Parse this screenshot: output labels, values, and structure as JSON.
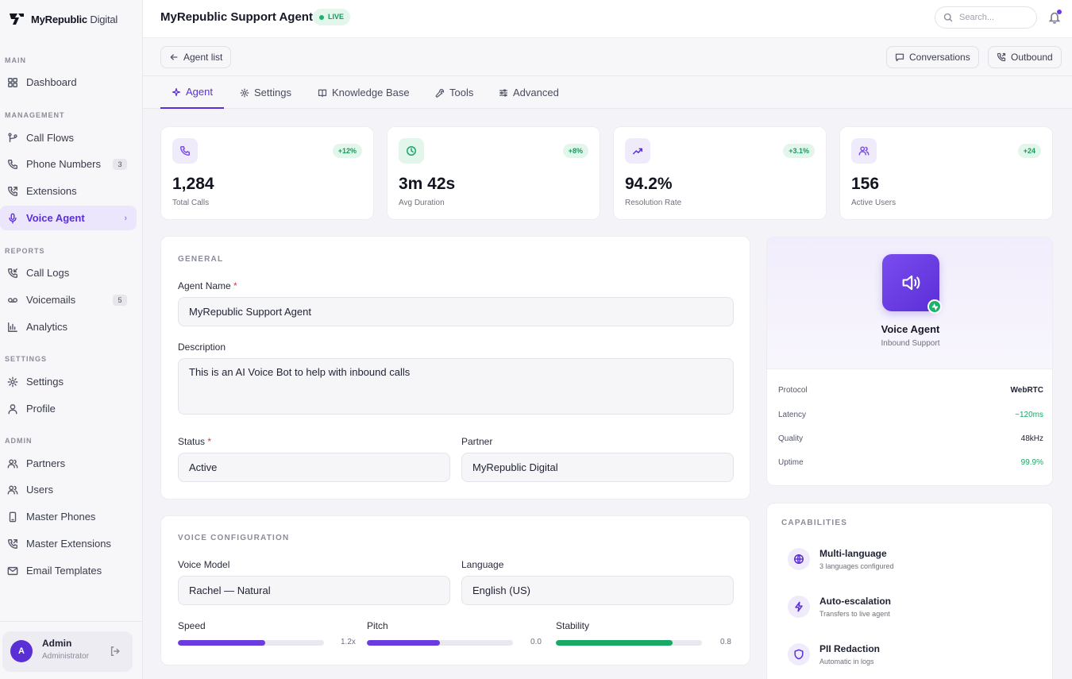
{
  "brand": {
    "name_bold": "MyRepublic",
    "name_light": "Digital"
  },
  "sidebar": {
    "sections": [
      {
        "label": "MAIN"
      },
      {
        "label": "MANAGEMENT"
      },
      {
        "label": "REPORTS"
      },
      {
        "label": "SETTINGS"
      },
      {
        "label": "ADMIN"
      }
    ],
    "items": [
      {
        "label": "Dashboard",
        "icon": "grid-icon"
      },
      {
        "label": "Call Flows",
        "icon": "flow-icon"
      },
      {
        "label": "Phone Numbers",
        "icon": "phone-icon",
        "badge": "3"
      },
      {
        "label": "Extensions",
        "icon": "phone-forward-icon"
      },
      {
        "label": "Voice Agent",
        "icon": "mic-icon",
        "active": true
      },
      {
        "label": "Call Logs",
        "icon": "phone-incoming-icon"
      },
      {
        "label": "Voicemails",
        "icon": "voicemail-icon",
        "badge": "5"
      },
      {
        "label": "Analytics",
        "icon": "bar-chart-icon"
      },
      {
        "label": "Settings",
        "icon": "gear-icon"
      },
      {
        "label": "Profile",
        "icon": "user-icon"
      },
      {
        "label": "Partners",
        "icon": "users-icon"
      },
      {
        "label": "Users",
        "icon": "users-icon"
      },
      {
        "label": "Master Phones",
        "icon": "smartphone-icon"
      },
      {
        "label": "Master Extensions",
        "icon": "phone-forward-icon"
      },
      {
        "label": "Email Templates",
        "icon": "mail-icon"
      }
    ]
  },
  "user": {
    "initial": "A",
    "name": "Admin",
    "role": "Administrator"
  },
  "header": {
    "title": "MyRepublic Support Agent",
    "status": "LIVE",
    "search_placeholder": "Search..."
  },
  "subbar": {
    "back_label": "Agent list",
    "conversations_label": "Conversations",
    "outbound_label": "Outbound"
  },
  "tabs": [
    {
      "label": "Agent",
      "active": true
    },
    {
      "label": "Settings"
    },
    {
      "label": "Knowledge Base"
    },
    {
      "label": "Tools"
    },
    {
      "label": "Advanced"
    }
  ],
  "stats": [
    {
      "value": "1,284",
      "label": "Total Calls",
      "delta": "+12%",
      "icon": "phone-icon",
      "color": "#7a4cf0",
      "bg": "#efebfb"
    },
    {
      "value": "3m 42s",
      "label": "Avg Duration",
      "delta": "+8%",
      "icon": "clock-icon",
      "color": "#19a865",
      "bg": "#e3f6ec"
    },
    {
      "value": "94.2%",
      "label": "Resolution Rate",
      "delta": "+3.1%",
      "icon": "trending-up-icon",
      "color": "#5b2fd6",
      "bg": "#efebfb"
    },
    {
      "value": "156",
      "label": "Active Users",
      "delta": "+24",
      "icon": "users-icon",
      "color": "#7a4cf0",
      "bg": "#efebfb"
    }
  ],
  "general": {
    "title": "GENERAL",
    "agent_name_label": "Agent Name",
    "agent_name": "MyRepublic Support Agent",
    "description_label": "Description",
    "description": "This is an AI Voice Bot to help with inbound calls",
    "status_label": "Status",
    "status": "Active",
    "partner_label": "Partner",
    "partner": "MyRepublic Digital",
    "required_mark": "*"
  },
  "voice": {
    "title": "VOICE CONFIGURATION",
    "model_label": "Voice Model",
    "model": "Rachel — Natural",
    "language_label": "Language",
    "language": "English (US)",
    "sliders": [
      {
        "label": "Speed",
        "value": "1.2x",
        "fraction": 0.6,
        "color": "#6a3ce0"
      },
      {
        "label": "Pitch",
        "value": "0.0",
        "fraction": 0.5,
        "color": "#6a3ce0"
      },
      {
        "label": "Stability",
        "value": "0.8",
        "fraction": 0.8,
        "color": "#19a865"
      }
    ]
  },
  "agent_card": {
    "title": "Voice Agent",
    "subtitle": "Inbound Support",
    "specs": [
      {
        "key": "Protocol",
        "value": "WebRTC"
      },
      {
        "key": "Latency",
        "value": "~120ms",
        "highlight": true
      },
      {
        "key": "Quality",
        "value": "48kHz"
      },
      {
        "key": "Uptime",
        "value": "99.9%",
        "highlight": true
      }
    ]
  },
  "capabilities": {
    "title": "CAPABILITIES",
    "items": [
      {
        "title": "Multi-language",
        "subtitle": "3 languages configured",
        "icon": "globe-icon"
      },
      {
        "title": "Auto-escalation",
        "subtitle": "Transfers to live agent",
        "icon": "bolt-icon"
      },
      {
        "title": "PII Redaction",
        "subtitle": "Automatic in logs",
        "icon": "shield-icon"
      }
    ]
  }
}
